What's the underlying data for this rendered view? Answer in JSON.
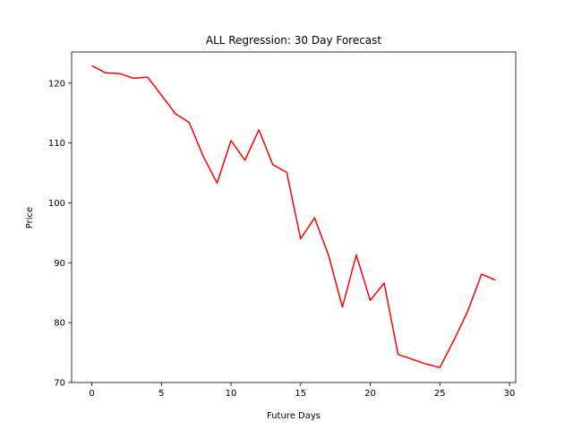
{
  "chart_data": {
    "type": "line",
    "title": "ALL Regression: 30 Day Forecast",
    "xlabel": "Future Days",
    "ylabel": "Price",
    "xlim": [
      -1.45,
      30.45
    ],
    "ylim": [
      70,
      125.2
    ],
    "xticks": [
      0,
      5,
      10,
      15,
      20,
      25,
      30
    ],
    "yticks": [
      70,
      80,
      90,
      100,
      110,
      120
    ],
    "grid": false,
    "series": [
      {
        "color": "#ff0000",
        "x": [
          0,
          1,
          2,
          3,
          4,
          5,
          6,
          7,
          8,
          9,
          10,
          11,
          12,
          13,
          14,
          15,
          16,
          17,
          18,
          19,
          20,
          21,
          22,
          23,
          24,
          25,
          26,
          27,
          28,
          29
        ],
        "y": [
          122.9,
          121.7,
          121.6,
          120.8,
          121.0,
          118.0,
          114.9,
          113.4,
          107.8,
          103.3,
          110.4,
          107.1,
          112.2,
          106.4,
          105.1,
          94.0,
          97.5,
          91.3,
          82.6,
          91.3,
          83.7,
          86.6,
          74.7,
          73.9,
          73.1,
          72.5,
          77.0,
          81.9,
          88.1,
          87.1
        ]
      }
    ]
  }
}
